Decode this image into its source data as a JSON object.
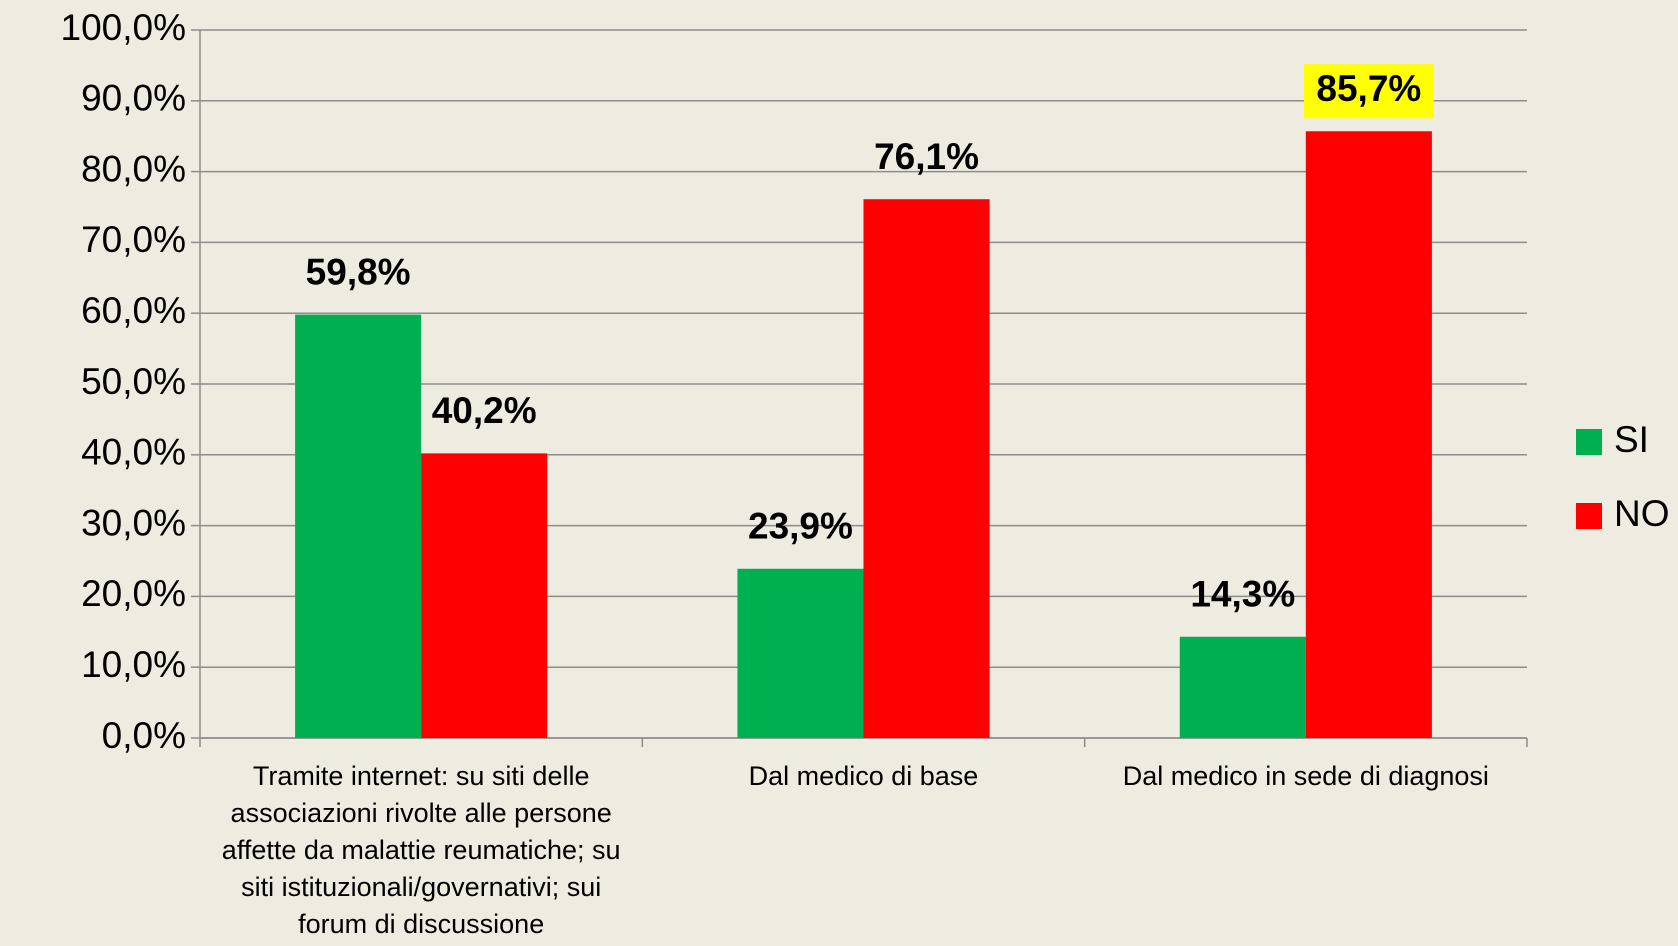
{
  "chart_data": {
    "type": "bar",
    "categories": [
      "Tramite internet: su siti delle associazioni rivolte alle persone affette da malattie reumatiche; su siti istituzionali/governativi; sui forum di discussione",
      "Dal medico di base",
      "Dal medico in sede di diagnosi"
    ],
    "series": [
      {
        "name": "SI",
        "color": "#00b050",
        "values": [
          59.8,
          23.9,
          14.3
        ],
        "value_labels": [
          "59,8%",
          "23,9%",
          "14,3%"
        ]
      },
      {
        "name": "NO",
        "color": "#ff0000",
        "values": [
          40.2,
          76.1,
          85.7
        ],
        "value_labels": [
          "40,2%",
          "76,1%",
          "85,7%"
        ]
      }
    ],
    "value_label_highlight": {
      "series": 1,
      "index": 2,
      "color": "#ffff00"
    },
    "ylim": [
      0,
      100
    ],
    "yticks": [
      {
        "value": 0,
        "label": "0,0%"
      },
      {
        "value": 10,
        "label": "10,0%"
      },
      {
        "value": 20,
        "label": "20,0%"
      },
      {
        "value": 30,
        "label": "30,0%"
      },
      {
        "value": 40,
        "label": "40,0%"
      },
      {
        "value": 50,
        "label": "50,0%"
      },
      {
        "value": 60,
        "label": "60,0%"
      },
      {
        "value": 70,
        "label": "70,0%"
      },
      {
        "value": 80,
        "label": "80,0%"
      },
      {
        "value": 90,
        "label": "90,0%"
      },
      {
        "value": 100,
        "label": "100,0%"
      }
    ],
    "grid": true,
    "legend": "right"
  }
}
